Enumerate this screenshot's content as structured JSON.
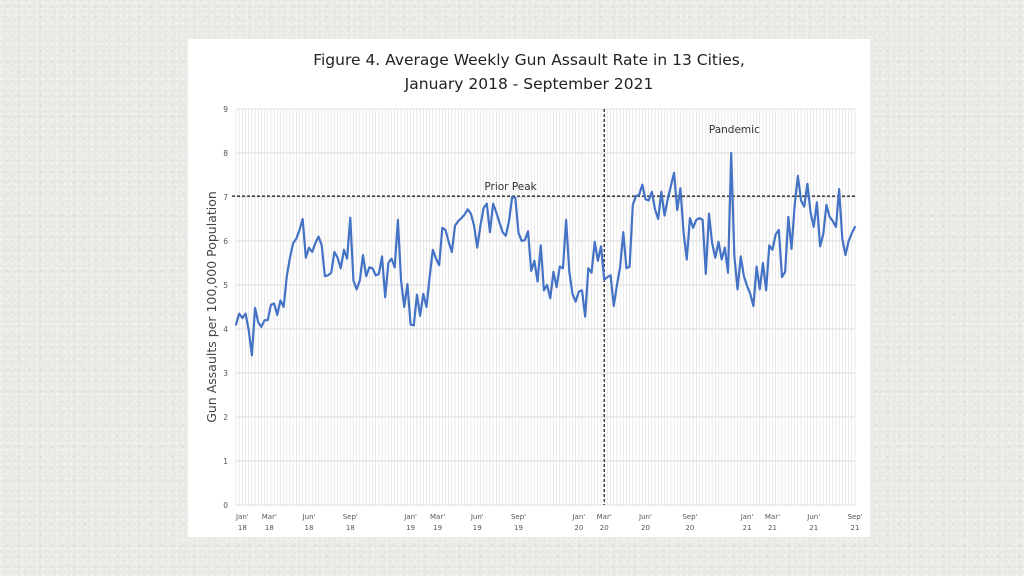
{
  "colors": {
    "line": "#4472c4",
    "grid": "#dcdcdc",
    "ref": "#111111"
  },
  "title_lines": [
    "Figure 4. Average Weekly Gun Assault Rate in 13 Cities,",
    "January 2018 - September 2021"
  ],
  "chart_data": {
    "type": "line",
    "title": "Figure 4. Average Weekly Gun Assault Rate in 13 Cities, January 2018 - September 2021",
    "xlabel": "",
    "ylabel": "Gun Assaults per 100,000 Population",
    "ylim": [
      0,
      9
    ],
    "yticks": [
      0,
      1,
      2,
      3,
      4,
      5,
      6,
      7,
      8,
      9
    ],
    "grid": true,
    "x_unit": "week index (0 = first week of Jan 2018)",
    "xlim": [
      0,
      195
    ],
    "x_ticks": [
      {
        "x": 2,
        "top": "Jan'",
        "bottom": "18"
      },
      {
        "x": 10.5,
        "top": "Mar'",
        "bottom": "18"
      },
      {
        "x": 23,
        "top": "Jun'",
        "bottom": "18"
      },
      {
        "x": 36,
        "top": "Sep'",
        "bottom": "18"
      },
      {
        "x": 55,
        "top": "Jan'",
        "bottom": "19"
      },
      {
        "x": 63.5,
        "top": "Mar'",
        "bottom": "19"
      },
      {
        "x": 76,
        "top": "Jun'",
        "bottom": "19"
      },
      {
        "x": 89,
        "top": "Sep'",
        "bottom": "19"
      },
      {
        "x": 108,
        "top": "Jan'",
        "bottom": "20"
      },
      {
        "x": 116,
        "top": "Mar'",
        "bottom": "20"
      },
      {
        "x": 129,
        "top": "Jun'",
        "bottom": "20"
      },
      {
        "x": 143,
        "top": "Sep'",
        "bottom": "20"
      },
      {
        "x": 161,
        "top": "Jan'",
        "bottom": "21"
      },
      {
        "x": 169,
        "top": "Mar'",
        "bottom": "21"
      },
      {
        "x": 182,
        "top": "Jun'",
        "bottom": "21"
      },
      {
        "x": 195,
        "top": "Sep'",
        "bottom": "21"
      }
    ],
    "series": [
      {
        "name": "Average Weekly Gun Assault Rate",
        "values": [
          4.1,
          4.35,
          4.25,
          4.35,
          3.98,
          3.4,
          4.48,
          4.15,
          4.05,
          4.2,
          4.2,
          4.55,
          4.58,
          4.32,
          4.65,
          4.5,
          5.2,
          5.62,
          5.95,
          6.05,
          6.25,
          6.5,
          5.62,
          5.85,
          5.75,
          5.95,
          6.1,
          5.9,
          5.2,
          5.22,
          5.28,
          5.75,
          5.62,
          5.38,
          5.8,
          5.6,
          6.53,
          5.1,
          4.9,
          5.1,
          5.68,
          5.2,
          5.4,
          5.38,
          5.22,
          5.25,
          5.65,
          4.72,
          5.5,
          5.6,
          5.4,
          6.48,
          5.1,
          4.5,
          5.02,
          4.1,
          4.08,
          4.78,
          4.3,
          4.8,
          4.5,
          5.18,
          5.8,
          5.6,
          5.45,
          6.3,
          6.25,
          5.98,
          5.75,
          6.35,
          6.45,
          6.52,
          6.6,
          6.72,
          6.62,
          6.35,
          5.85,
          6.35,
          6.75,
          6.85,
          6.2,
          6.85,
          6.65,
          6.42,
          6.2,
          6.12,
          6.45,
          7.0,
          6.98,
          6.18,
          6.0,
          6.02,
          6.22,
          5.32,
          5.55,
          5.08,
          5.9,
          4.88,
          5.0,
          4.7,
          5.3,
          4.95,
          5.42,
          5.38,
          6.48,
          5.3,
          4.8,
          4.62,
          4.85,
          4.88,
          4.28,
          5.38,
          5.28,
          5.98,
          5.55,
          5.88,
          5.12,
          5.18,
          5.22,
          4.52,
          5.0,
          5.4,
          6.2,
          5.38,
          5.42,
          6.82,
          7.02,
          7.05,
          7.28,
          6.95,
          6.92,
          7.12,
          6.72,
          6.5,
          7.12,
          6.58,
          6.95,
          7.25,
          7.55,
          6.7,
          7.2,
          6.2,
          5.58,
          6.52,
          6.3,
          6.48,
          6.52,
          6.48,
          5.25,
          6.62,
          5.95,
          5.62,
          5.98,
          5.58,
          5.85,
          5.28,
          8.0,
          5.65,
          4.9,
          5.65,
          5.2,
          4.98,
          4.8,
          4.52,
          5.42,
          4.9,
          5.5,
          4.88,
          5.9,
          5.8,
          6.15,
          6.25,
          5.18,
          5.3,
          6.55,
          5.82,
          6.82,
          7.48,
          6.92,
          6.78,
          7.3,
          6.65,
          6.32,
          6.88,
          5.88,
          6.15,
          6.82,
          6.55,
          6.45,
          6.32,
          7.18,
          6.05,
          5.68,
          6.0,
          6.18,
          6.32
        ]
      }
    ],
    "reference_lines": [
      {
        "orientation": "horizontal",
        "y": 7.02,
        "label": "Prior Peak",
        "style": "dashed"
      },
      {
        "orientation": "vertical",
        "x": 116,
        "label": "Pandemic",
        "style": "dashed"
      }
    ]
  }
}
